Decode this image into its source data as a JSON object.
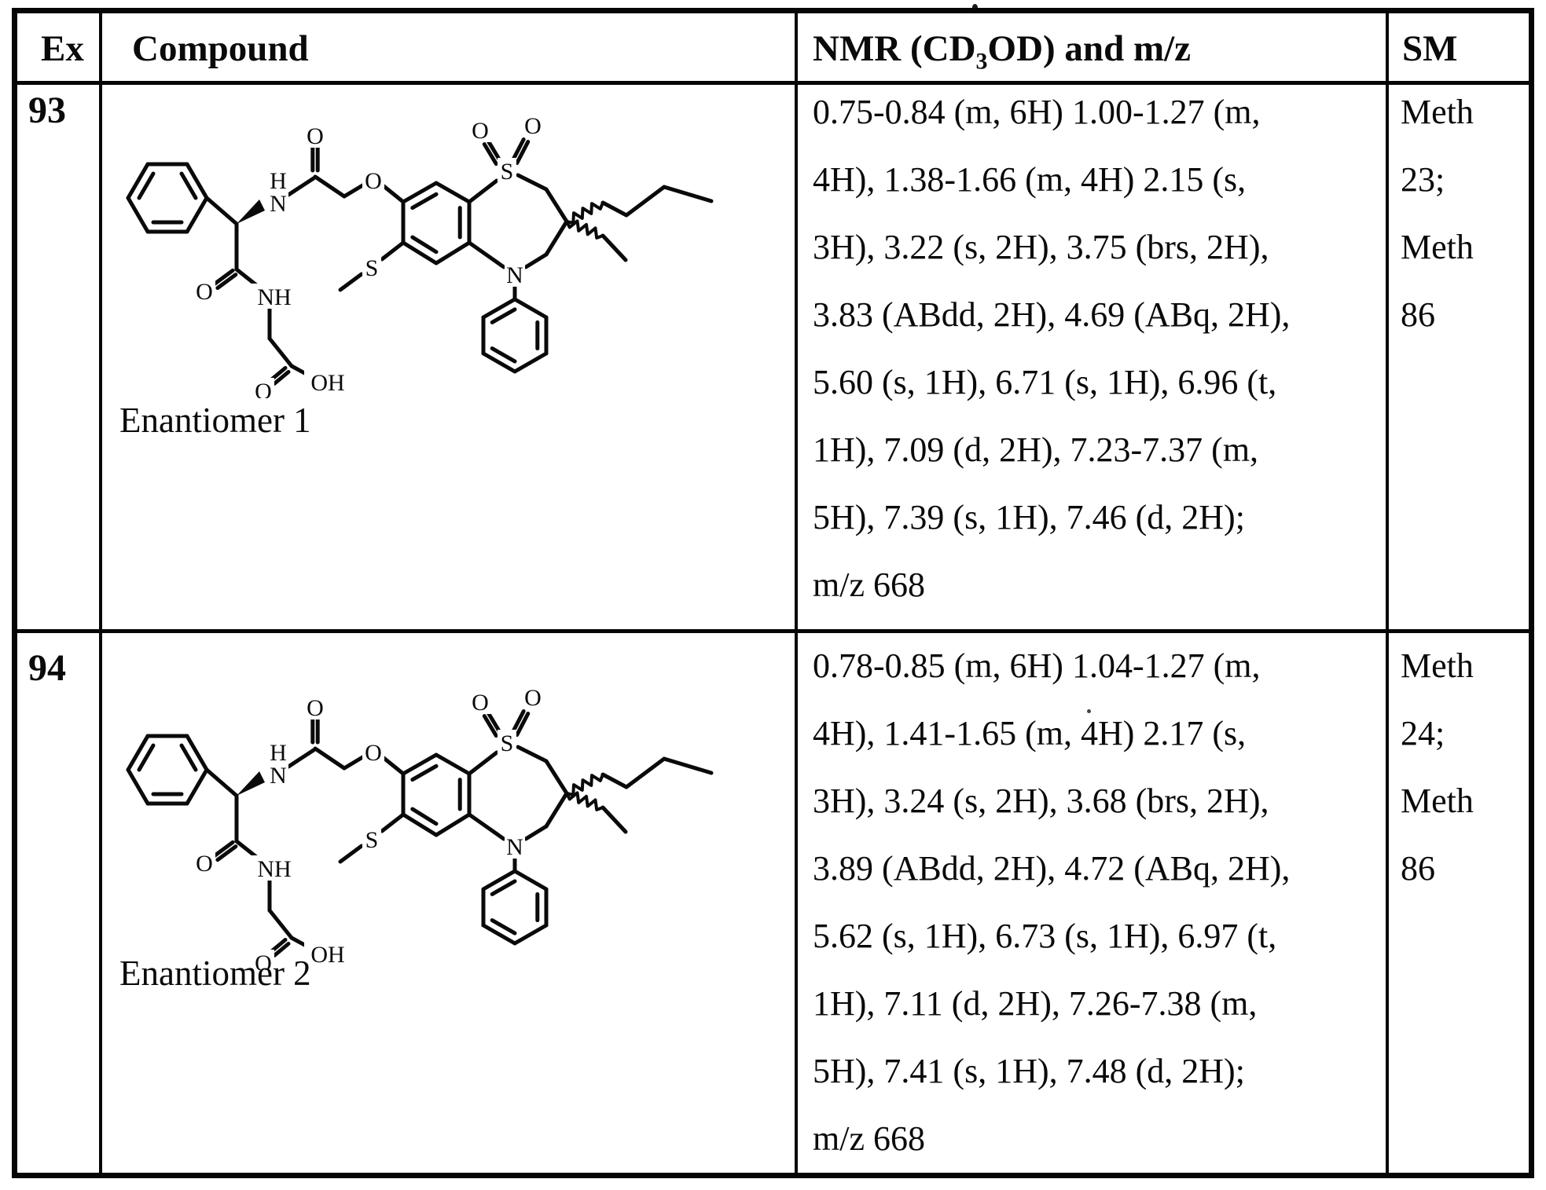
{
  "colors": {
    "ink": "#0a0a0a",
    "paper": "#ffffff"
  },
  "table": {
    "headers": {
      "ex": "Ex",
      "compound": "Compound",
      "nmr_pre": "NMR (CD",
      "nmr_sub": "3",
      "nmr_post": "OD) and m/z",
      "sm": "SM"
    },
    "rows": [
      {
        "ex": "93",
        "compound_label": "Enantiomer 1",
        "nmr_lines": [
          "0.75-0.84 (m, 6H) 1.00-1.27 (m,",
          "4H), 1.38-1.66 (m, 4H) 2.15 (s,",
          "3H), 3.22 (s, 2H), 3.75 (brs, 2H),",
          "3.83 (ABdd, 2H), 4.69 (ABq, 2H),",
          "5.60 (s, 1H), 6.71 (s, 1H), 6.96 (t,",
          "1H), 7.09 (d, 2H), 7.23-7.37 (m,",
          "5H), 7.39 (s, 1H), 7.46 (d, 2H);",
          "m/z 668"
        ],
        "sm_lines": [
          "Meth",
          "23;",
          "Meth",
          "86"
        ]
      },
      {
        "ex": "94",
        "compound_label": "Enantiomer 2",
        "nmr_lines": [
          "0.78-0.85 (m, 6H) 1.04-1.27 (m,",
          "4H), 1.41-1.65 (m, 4H) 2.17 (s,",
          "3H), 3.24 (s, 2H), 3.68 (brs, 2H),",
          "3.89 (ABdd, 2H), 4.72 (ABq, 2H),",
          "5.62 (s, 1H), 6.73 (s, 1H), 6.97 (t,",
          "1H), 7.11 (d, 2H), 7.26-7.38 (m,",
          "5H), 7.41 (s, 1H), 7.48 (d, 2H);",
          "m/z 668"
        ],
        "sm_lines": [
          "Meth",
          "24;",
          "Meth",
          "86"
        ]
      }
    ]
  },
  "structure": {
    "atoms": {
      "hydrogen": "H",
      "nitrogen": "N",
      "oxygen": "O",
      "sulfur": "S",
      "nh": "NH",
      "oh": "OH"
    }
  }
}
